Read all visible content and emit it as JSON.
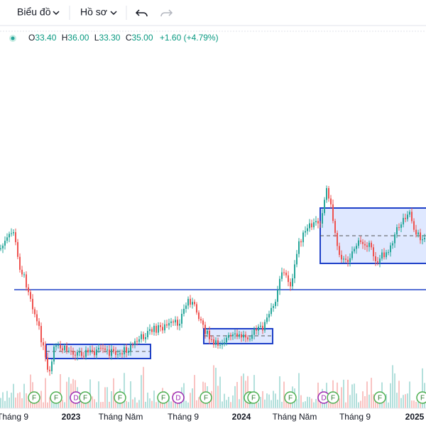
{
  "toolbar": {
    "chart_menu": "Biểu đồ",
    "profile_menu": "Hồ sơ"
  },
  "legend": {
    "open_label": "O",
    "open": "33.40",
    "high_label": "H",
    "high": "36.00",
    "low_label": "L",
    "low": "33.30",
    "close_label": "C",
    "close": "35.00",
    "change": "+1.60 (+4.79%)"
  },
  "x_axis": {
    "labels": [
      "Tháng 9",
      "2023",
      "Tháng Năm",
      "Tháng 9",
      "2024",
      "Tháng Năm",
      "Tháng 9",
      "2025"
    ]
  },
  "events": [
    "F",
    "F",
    "D",
    "F",
    "F",
    "F",
    "D",
    "F",
    "F",
    "F",
    "F",
    "D",
    "F",
    "F",
    "F"
  ]
}
